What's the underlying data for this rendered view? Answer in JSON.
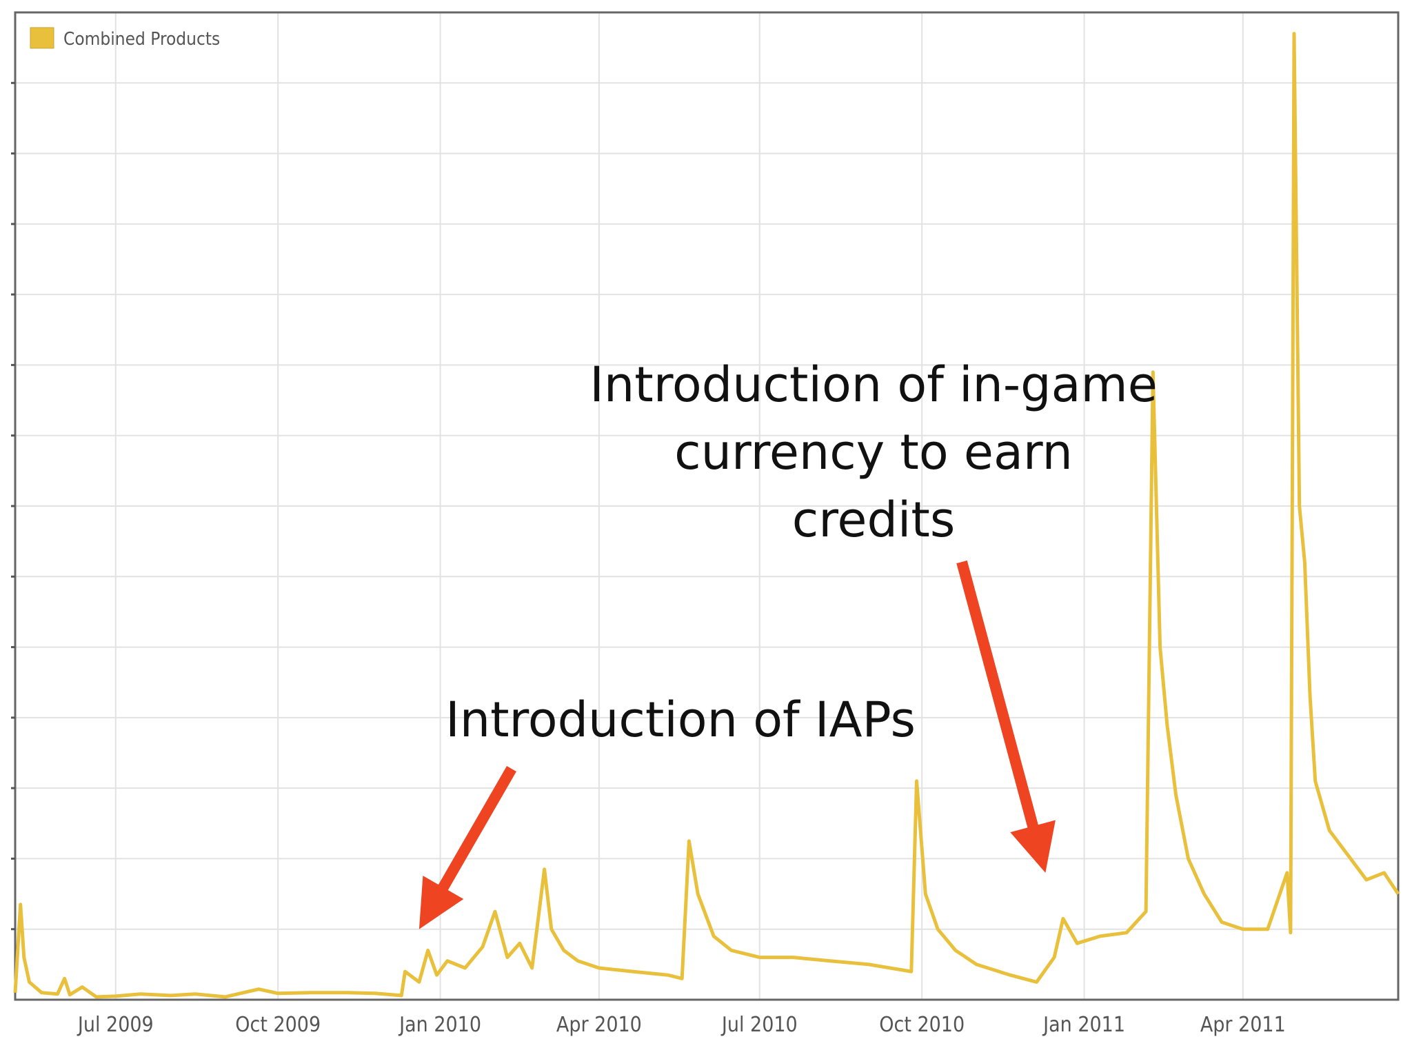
{
  "chart_data": {
    "type": "line",
    "title": "",
    "xlabel": "",
    "ylabel": "",
    "x_ticks": [
      "Jul 2009",
      "Oct 2009",
      "Jan 2010",
      "Apr 2010",
      "Jul 2010",
      "Oct 2010",
      "Jan 2011",
      "Apr 2011"
    ],
    "x_tick_dates": [
      "2009-07-01",
      "2009-10-01",
      "2010-01-01",
      "2010-04-01",
      "2010-07-01",
      "2010-10-01",
      "2011-01-01",
      "2011-04-01"
    ],
    "x_range": [
      "2009-05-05",
      "2011-06-28"
    ],
    "ylim": [
      0,
      140
    ],
    "y_tick_labels_visible": false,
    "grid": true,
    "legend": {
      "position": "top-left"
    },
    "series": [
      {
        "name": "Combined Products",
        "color": "#E8C03C",
        "points": [
          [
            "2009-05-05",
            1.0
          ],
          [
            "2009-05-08",
            13.5
          ],
          [
            "2009-05-10",
            6.0
          ],
          [
            "2009-05-13",
            2.5
          ],
          [
            "2009-05-20",
            1.0
          ],
          [
            "2009-05-29",
            0.8
          ],
          [
            "2009-06-02",
            3.0
          ],
          [
            "2009-06-05",
            0.7
          ],
          [
            "2009-06-12",
            1.8
          ],
          [
            "2009-06-20",
            0.4
          ],
          [
            "2009-07-01",
            0.5
          ],
          [
            "2009-07-15",
            0.8
          ],
          [
            "2009-08-01",
            0.6
          ],
          [
            "2009-08-15",
            0.8
          ],
          [
            "2009-09-01",
            0.4
          ],
          [
            "2009-09-20",
            1.5
          ],
          [
            "2009-10-01",
            0.9
          ],
          [
            "2009-10-20",
            1.0
          ],
          [
            "2009-11-10",
            1.0
          ],
          [
            "2009-11-25",
            0.9
          ],
          [
            "2009-12-10",
            0.6
          ],
          [
            "2009-12-12",
            4.0
          ],
          [
            "2009-12-20",
            2.5
          ],
          [
            "2009-12-25",
            7.0
          ],
          [
            "2009-12-30",
            3.5
          ],
          [
            "2010-01-05",
            5.5
          ],
          [
            "2010-01-15",
            4.5
          ],
          [
            "2010-01-25",
            7.5
          ],
          [
            "2010-02-01",
            12.5
          ],
          [
            "2010-02-08",
            6.0
          ],
          [
            "2010-02-15",
            8.0
          ],
          [
            "2010-02-22",
            4.5
          ],
          [
            "2010-03-01",
            18.5
          ],
          [
            "2010-03-05",
            10.0
          ],
          [
            "2010-03-12",
            7.0
          ],
          [
            "2010-03-20",
            5.5
          ],
          [
            "2010-04-01",
            4.5
          ],
          [
            "2010-04-20",
            4.0
          ],
          [
            "2010-05-10",
            3.5
          ],
          [
            "2010-05-18",
            3.0
          ],
          [
            "2010-05-22",
            22.5
          ],
          [
            "2010-05-27",
            15.0
          ],
          [
            "2010-06-05",
            9.0
          ],
          [
            "2010-06-15",
            7.0
          ],
          [
            "2010-07-01",
            6.0
          ],
          [
            "2010-07-20",
            6.0
          ],
          [
            "2010-08-10",
            5.5
          ],
          [
            "2010-09-01",
            5.0
          ],
          [
            "2010-09-25",
            4.0
          ],
          [
            "2010-09-28",
            31.0
          ],
          [
            "2010-10-03",
            15.0
          ],
          [
            "2010-10-10",
            10.0
          ],
          [
            "2010-10-20",
            7.0
          ],
          [
            "2010-11-01",
            5.0
          ],
          [
            "2010-11-20",
            3.5
          ],
          [
            "2010-12-05",
            2.5
          ],
          [
            "2010-12-15",
            6.0
          ],
          [
            "2010-12-20",
            11.5
          ],
          [
            "2010-12-28",
            8.0
          ],
          [
            "2011-01-10",
            9.0
          ],
          [
            "2011-01-25",
            9.5
          ],
          [
            "2011-02-05",
            12.5
          ],
          [
            "2011-02-09",
            89.0
          ],
          [
            "2011-02-13",
            50.0
          ],
          [
            "2011-02-17",
            39.0
          ],
          [
            "2011-02-22",
            29.0
          ],
          [
            "2011-03-01",
            20.0
          ],
          [
            "2011-03-10",
            15.0
          ],
          [
            "2011-03-20",
            11.0
          ],
          [
            "2011-04-01",
            10.0
          ],
          [
            "2011-04-15",
            10.0
          ],
          [
            "2011-04-26",
            18.0
          ],
          [
            "2011-04-28",
            9.5
          ],
          [
            "2011-04-30",
            137.0
          ],
          [
            "2011-05-03",
            70.0
          ],
          [
            "2011-05-06",
            62.0
          ],
          [
            "2011-05-09",
            43.0
          ],
          [
            "2011-05-12",
            31.0
          ],
          [
            "2011-05-20",
            24.0
          ],
          [
            "2011-06-01",
            20.0
          ],
          [
            "2011-06-10",
            17.0
          ],
          [
            "2011-06-20",
            18.0
          ],
          [
            "2011-06-28",
            15.0
          ]
        ]
      }
    ],
    "annotations": [
      {
        "text": "Introduction of IAPs",
        "arrow_target_date": "2009-12-20",
        "arrow_target_value": 10.0
      },
      {
        "lines": [
          "Introduction of in-game",
          "currency to earn",
          "credits"
        ],
        "arrow_target_date": "2010-12-10",
        "arrow_target_value": 18.0
      }
    ],
    "annotation_color": "#EE4422"
  }
}
